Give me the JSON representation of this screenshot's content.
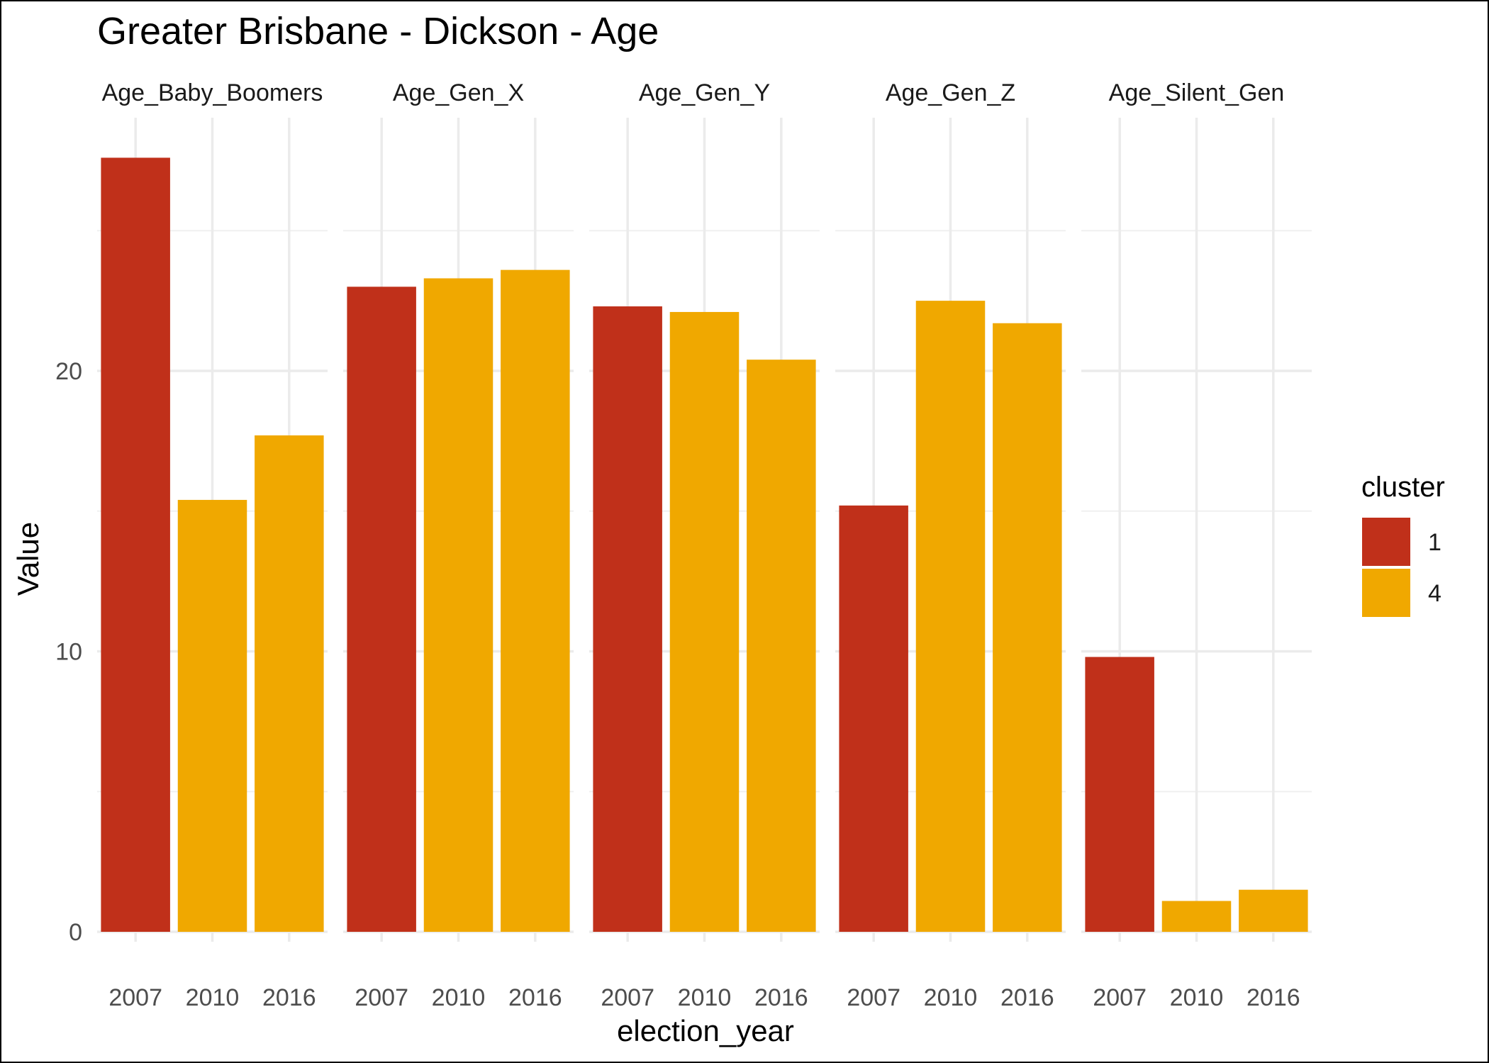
{
  "chart_data": {
    "type": "bar",
    "title": "Greater Brisbane - Dickson - Age",
    "xlabel": "election_year",
    "ylabel": "Value",
    "categories": [
      "2007",
      "2010",
      "2016"
    ],
    "y_ticks": [
      "0",
      "10",
      "20"
    ],
    "ylim": [
      0,
      28.5
    ],
    "grid": true,
    "legend": {
      "title": "cluster",
      "position": "right",
      "entries": [
        {
          "label": "1",
          "color": "#C0301A"
        },
        {
          "label": "4",
          "color": "#F0A800"
        }
      ]
    },
    "facets": [
      {
        "name": "Age_Baby_Boomers",
        "values": [
          27.6,
          15.4,
          17.7
        ],
        "cluster": [
          "1",
          "4",
          "4"
        ]
      },
      {
        "name": "Age_Gen_X",
        "values": [
          23.0,
          23.3,
          23.6
        ],
        "cluster": [
          "1",
          "4",
          "4"
        ]
      },
      {
        "name": "Age_Gen_Y",
        "values": [
          22.3,
          22.1,
          20.4
        ],
        "cluster": [
          "1",
          "4",
          "4"
        ]
      },
      {
        "name": "Age_Gen_Z",
        "values": [
          15.2,
          22.5,
          21.7
        ],
        "cluster": [
          "1",
          "4",
          "4"
        ]
      },
      {
        "name": "Age_Silent_Gen",
        "values": [
          9.8,
          1.1,
          1.5
        ],
        "cluster": [
          "1",
          "4",
          "4"
        ]
      }
    ]
  }
}
